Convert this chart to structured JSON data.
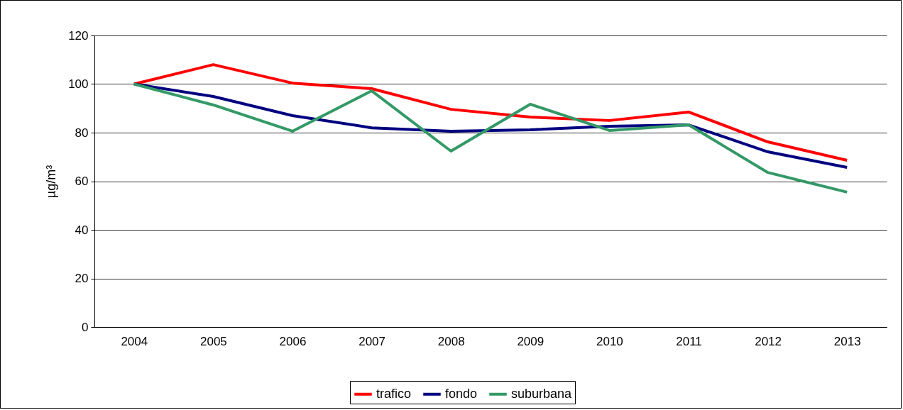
{
  "chart_data": {
    "type": "line",
    "ylabel": "µg/m³",
    "categories": [
      "2004",
      "2005",
      "2006",
      "2007",
      "2008",
      "2009",
      "2010",
      "2011",
      "2012",
      "2013"
    ],
    "ylim": [
      0,
      120
    ],
    "yticks": [
      0,
      20,
      40,
      60,
      80,
      100,
      120
    ],
    "grid": "y",
    "legend": "bottom",
    "marker": "none",
    "line_style": "solid",
    "series": [
      {
        "name": "trafico",
        "color": "#ff0000",
        "values": [
          100,
          108.0,
          100.4,
          98.1,
          89.6,
          86.4,
          85.0,
          88.5,
          76.2,
          68.6
        ]
      },
      {
        "name": "fondo",
        "color": "#000080",
        "values": [
          100,
          94.9,
          87.0,
          82.0,
          80.6,
          81.2,
          82.6,
          83.2,
          72.1,
          65.7
        ]
      },
      {
        "name": "suburbana",
        "color": "#339966",
        "values": [
          100,
          91.4,
          80.6,
          97.2,
          72.4,
          91.7,
          80.9,
          83.2,
          63.6,
          55.5
        ]
      }
    ]
  }
}
